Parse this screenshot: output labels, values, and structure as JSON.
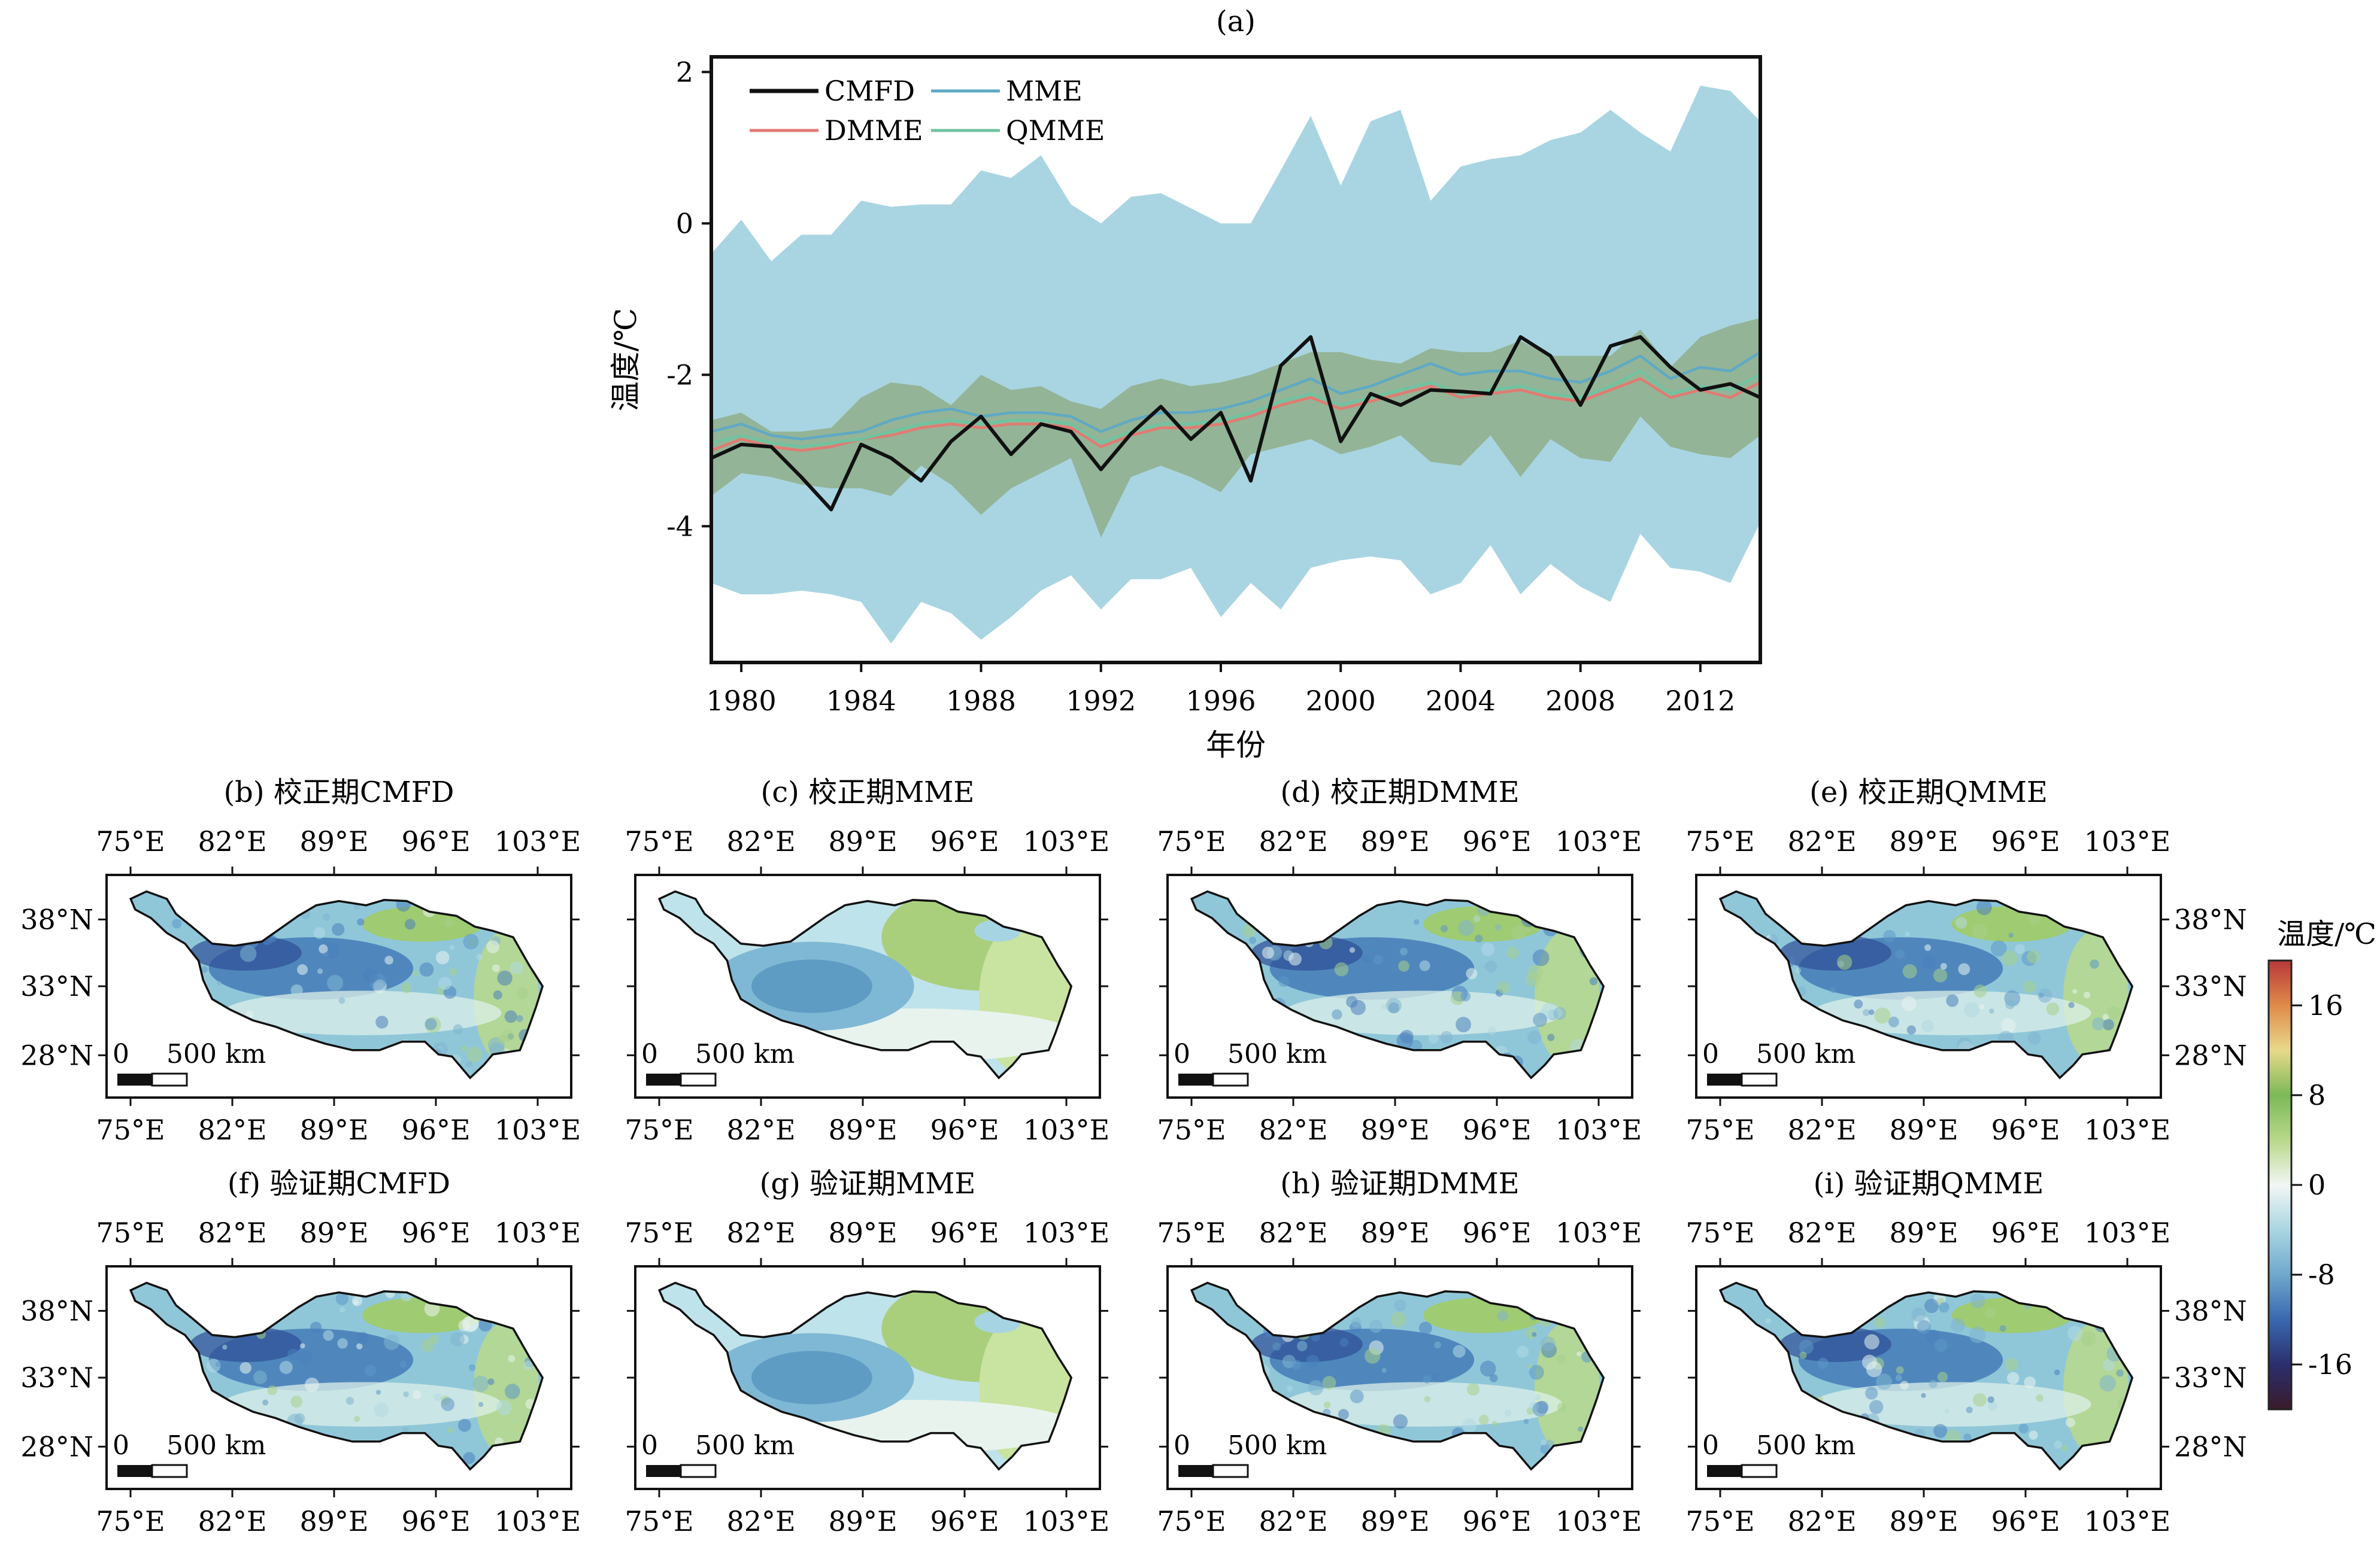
{
  "panel_a": {
    "label": "(a)",
    "xlabel": "年份",
    "ylabel": "温度/℃",
    "legend": [
      "CMFD",
      "MME",
      "DMME",
      "QMME"
    ]
  },
  "maps": {
    "xticks": [
      "75°E",
      "82°E",
      "89°E",
      "96°E",
      "103°E"
    ],
    "yticks": [
      "38°N",
      "33°N",
      "28°N"
    ],
    "scalebar": "0    500 km",
    "scalebar_zero": "0",
    "scalebar_len": "500 km",
    "panels": [
      {
        "id": "b",
        "title": "(b) 校正期CMFD",
        "style": "fine"
      },
      {
        "id": "c",
        "title": "(c) 校正期MME",
        "style": "smooth"
      },
      {
        "id": "d",
        "title": "(d) 校正期DMME",
        "style": "fine"
      },
      {
        "id": "e",
        "title": "(e) 校正期QMME",
        "style": "fine"
      },
      {
        "id": "f",
        "title": "(f) 验证期CMFD",
        "style": "fine"
      },
      {
        "id": "g",
        "title": "(g) 验证期MME",
        "style": "smooth"
      },
      {
        "id": "h",
        "title": "(h) 验证期DMME",
        "style": "fine"
      },
      {
        "id": "i",
        "title": "(i) 验证期QMME",
        "style": "fine"
      }
    ]
  },
  "colorbar": {
    "title": "温度/℃",
    "ticks": [
      "16",
      "8",
      "0",
      "-8",
      "-16"
    ],
    "tick_values": [
      16,
      8,
      0,
      -8,
      -16
    ],
    "range": [
      -20,
      20
    ],
    "colors": [
      "#3a1a2a",
      "#2b2f6e",
      "#3a68b0",
      "#6fa8cc",
      "#aad6e2",
      "#f2f6f4",
      "#b8d88a",
      "#7cb957",
      "#e8d98a",
      "#e08a4a",
      "#b8383a"
    ]
  },
  "colors": {
    "cmfd": "#111111",
    "mme": "#5fa9c4",
    "mme_band": "#a9d5e2",
    "dmme": "#e07b72",
    "qmme": "#6fc3a0",
    "overlap_band": "#8fae8a"
  },
  "chart_data": {
    "type": "line",
    "x": [
      1979,
      1980,
      1981,
      1982,
      1983,
      1984,
      1985,
      1986,
      1987,
      1988,
      1989,
      1990,
      1991,
      1992,
      1993,
      1994,
      1995,
      1996,
      1997,
      1998,
      1999,
      2000,
      2001,
      2002,
      2003,
      2004,
      2005,
      2006,
      2007,
      2008,
      2009,
      2010,
      2011,
      2012,
      2013,
      2014
    ],
    "xticks": [
      1980,
      1984,
      1988,
      1992,
      1996,
      2000,
      2004,
      2008,
      2012
    ],
    "xlim": [
      1979,
      2014
    ],
    "ylim": [
      -5.8,
      2.2
    ],
    "yticks": [
      2,
      0,
      -2,
      -4
    ],
    "xlabel": "年份",
    "ylabel": "温度/℃",
    "series": [
      {
        "name": "CMFD",
        "values": [
          -3.1,
          -2.92,
          -2.95,
          -3.35,
          -3.78,
          -2.92,
          -3.1,
          -3.4,
          -2.88,
          -2.55,
          -3.05,
          -2.65,
          -2.75,
          -3.25,
          -2.78,
          -2.42,
          -2.85,
          -2.5,
          -3.4,
          -1.88,
          -1.5,
          -2.88,
          -2.25,
          -2.4,
          -2.2,
          -2.22,
          -2.25,
          -1.5,
          -1.75,
          -2.4,
          -1.62,
          -1.5,
          -1.9,
          -2.2,
          -2.12,
          -2.3
        ]
      },
      {
        "name": "MME",
        "values": [
          -2.75,
          -2.65,
          -2.8,
          -2.85,
          -2.8,
          -2.75,
          -2.6,
          -2.5,
          -2.45,
          -2.55,
          -2.5,
          -2.5,
          -2.55,
          -2.75,
          -2.6,
          -2.5,
          -2.5,
          -2.45,
          -2.35,
          -2.2,
          -2.05,
          -2.25,
          -2.15,
          -2.0,
          -1.85,
          -2.0,
          -1.95,
          -1.95,
          -2.05,
          -2.1,
          -1.95,
          -1.75,
          -2.05,
          -1.9,
          -1.95,
          -1.7
        ]
      },
      {
        "name": "DMME",
        "values": [
          -3.0,
          -2.85,
          -2.95,
          -3.0,
          -2.95,
          -2.85,
          -2.8,
          -2.7,
          -2.65,
          -2.7,
          -2.65,
          -2.65,
          -2.7,
          -2.95,
          -2.8,
          -2.7,
          -2.7,
          -2.65,
          -2.55,
          -2.4,
          -2.3,
          -2.45,
          -2.35,
          -2.25,
          -2.15,
          -2.3,
          -2.25,
          -2.2,
          -2.3,
          -2.35,
          -2.2,
          -2.05,
          -2.3,
          -2.2,
          -2.3,
          -2.1
        ]
      },
      {
        "name": "QMME",
        "values": [
          -2.9,
          -2.8,
          -2.9,
          -2.95,
          -2.9,
          -2.85,
          -2.75,
          -2.65,
          -2.6,
          -2.65,
          -2.6,
          -2.6,
          -2.65,
          -2.9,
          -2.75,
          -2.65,
          -2.65,
          -2.6,
          -2.5,
          -2.35,
          -2.25,
          -2.4,
          -2.3,
          -2.2,
          -2.1,
          -2.25,
          -2.2,
          -2.15,
          -2.25,
          -2.3,
          -2.15,
          -1.95,
          -2.25,
          -2.15,
          -2.2,
          -2.0
        ]
      }
    ],
    "bands": [
      {
        "name": "MME",
        "upper": [
          -0.4,
          0.05,
          -0.5,
          -0.15,
          -0.15,
          0.3,
          0.22,
          0.25,
          0.25,
          0.7,
          0.6,
          0.9,
          0.25,
          0.0,
          0.35,
          0.4,
          0.2,
          0.0,
          0.0,
          0.7,
          1.42,
          0.5,
          1.35,
          1.5,
          0.3,
          0.75,
          0.85,
          0.9,
          1.1,
          1.2,
          1.5,
          1.2,
          0.95,
          1.82,
          1.75,
          1.35
        ],
        "lower": [
          -4.75,
          -4.9,
          -4.9,
          -4.85,
          -4.9,
          -5.0,
          -5.55,
          -5.0,
          -5.15,
          -5.5,
          -5.2,
          -4.85,
          -4.65,
          -5.1,
          -4.7,
          -4.7,
          -4.55,
          -5.2,
          -4.75,
          -5.1,
          -4.55,
          -4.45,
          -4.4,
          -4.45,
          -4.9,
          -4.75,
          -4.25,
          -4.9,
          -4.5,
          -4.8,
          -5.0,
          -4.1,
          -4.55,
          -4.6,
          -4.75,
          -3.95
        ]
      },
      {
        "name": "DMME/QMME",
        "upper": [
          -2.6,
          -2.5,
          -2.75,
          -2.75,
          -2.7,
          -2.3,
          -2.1,
          -2.15,
          -2.4,
          -2.0,
          -2.2,
          -2.15,
          -2.35,
          -2.45,
          -2.15,
          -2.05,
          -2.15,
          -2.1,
          -2.0,
          -1.85,
          -1.7,
          -1.7,
          -1.8,
          -1.85,
          -1.65,
          -1.7,
          -1.7,
          -1.55,
          -1.75,
          -1.75,
          -1.75,
          -1.4,
          -1.9,
          -1.5,
          -1.35,
          -1.25
        ],
        "lower": [
          -3.6,
          -3.3,
          -3.35,
          -3.45,
          -3.5,
          -3.5,
          -3.6,
          -3.2,
          -3.45,
          -3.85,
          -3.5,
          -3.3,
          -3.1,
          -4.15,
          -3.35,
          -3.2,
          -3.35,
          -3.55,
          -3.05,
          -2.95,
          -2.85,
          -3.05,
          -2.95,
          -2.8,
          -3.15,
          -3.2,
          -2.8,
          -3.35,
          -2.85,
          -3.1,
          -3.15,
          -2.55,
          -2.95,
          -3.05,
          -3.1,
          -2.8
        ]
      }
    ]
  }
}
